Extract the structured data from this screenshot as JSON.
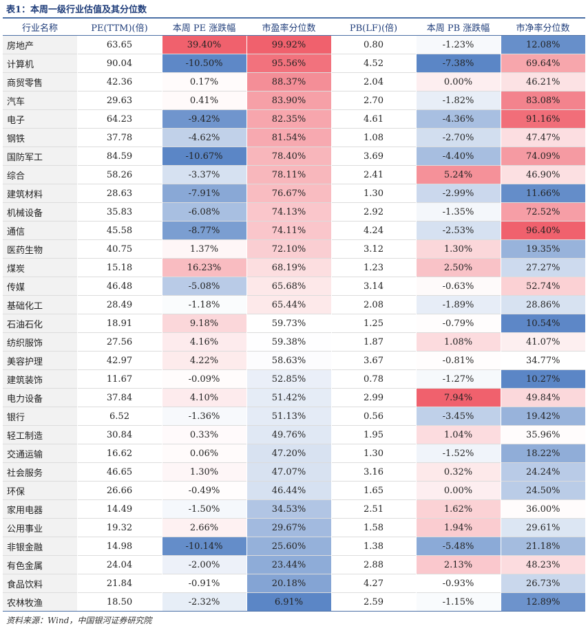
{
  "title": "表1：本周一级行业估值及其分位数",
  "headers": [
    "行业名称",
    "PE(TTM)(倍)",
    "本周 PE 涨跌幅",
    "市盈率分位数",
    "PB(LF)(倍)",
    "本周 PB 涨跌幅",
    "市净率分位数"
  ],
  "rows": [
    [
      "房地产",
      "63.65",
      "39.40%",
      "99.92%",
      "0.80",
      "-1.23%",
      "12.08%"
    ],
    [
      "计算机",
      "90.04",
      "-10.50%",
      "95.56%",
      "4.52",
      "-7.38%",
      "69.64%"
    ],
    [
      "商贸零售",
      "42.36",
      "0.17%",
      "88.37%",
      "2.04",
      "0.00%",
      "46.21%"
    ],
    [
      "汽车",
      "29.63",
      "0.41%",
      "83.90%",
      "2.70",
      "-1.82%",
      "83.08%"
    ],
    [
      "电子",
      "64.23",
      "-9.42%",
      "82.35%",
      "4.61",
      "-4.36%",
      "91.16%"
    ],
    [
      "钢铁",
      "37.78",
      "-4.62%",
      "81.54%",
      "1.08",
      "-2.70%",
      "47.47%"
    ],
    [
      "国防军工",
      "84.59",
      "-10.67%",
      "78.40%",
      "3.69",
      "-4.40%",
      "74.09%"
    ],
    [
      "综合",
      "58.26",
      "-3.37%",
      "78.11%",
      "2.41",
      "5.24%",
      "46.90%"
    ],
    [
      "建筑材料",
      "28.63",
      "-7.91%",
      "76.67%",
      "1.30",
      "-2.99%",
      "11.66%"
    ],
    [
      "机械设备",
      "35.83",
      "-6.08%",
      "74.13%",
      "2.92",
      "-1.35%",
      "72.52%"
    ],
    [
      "通信",
      "45.58",
      "-8.77%",
      "74.11%",
      "4.24",
      "-2.53%",
      "96.40%"
    ],
    [
      "医药生物",
      "40.75",
      "1.37%",
      "72.10%",
      "3.12",
      "1.30%",
      "19.35%"
    ],
    [
      "煤炭",
      "15.18",
      "16.23%",
      "68.19%",
      "1.23",
      "2.50%",
      "27.27%"
    ],
    [
      "传媒",
      "46.48",
      "-5.08%",
      "65.68%",
      "3.14",
      "-0.63%",
      "52.74%"
    ],
    [
      "基础化工",
      "28.49",
      "-1.18%",
      "65.44%",
      "2.08",
      "-1.89%",
      "28.86%"
    ],
    [
      "石油石化",
      "18.91",
      "9.18%",
      "59.73%",
      "1.25",
      "-0.79%",
      "10.54%"
    ],
    [
      "纺织服饰",
      "27.56",
      "4.16%",
      "59.38%",
      "1.87",
      "1.08%",
      "41.07%"
    ],
    [
      "美容护理",
      "42.97",
      "4.22%",
      "58.63%",
      "3.67",
      "-0.81%",
      "34.77%"
    ],
    [
      "建筑装饰",
      "11.67",
      "-0.09%",
      "52.85%",
      "0.78",
      "-1.27%",
      "10.27%"
    ],
    [
      "电力设备",
      "37.84",
      "4.10%",
      "51.42%",
      "2.99",
      "7.94%",
      "49.84%"
    ],
    [
      "银行",
      "6.52",
      "-1.36%",
      "51.13%",
      "0.56",
      "-3.45%",
      "19.42%"
    ],
    [
      "轻工制造",
      "30.84",
      "0.33%",
      "49.76%",
      "1.95",
      "1.04%",
      "35.96%"
    ],
    [
      "交通运输",
      "16.62",
      "0.06%",
      "47.20%",
      "1.30",
      "-1.52%",
      "18.22%"
    ],
    [
      "社会服务",
      "46.65",
      "1.30%",
      "47.07%",
      "3.16",
      "0.32%",
      "24.24%"
    ],
    [
      "环保",
      "26.66",
      "-0.49%",
      "46.44%",
      "1.65",
      "0.00%",
      "24.50%"
    ],
    [
      "家用电器",
      "14.49",
      "-1.50%",
      "34.53%",
      "2.51",
      "1.62%",
      "36.00%"
    ],
    [
      "公用事业",
      "19.32",
      "2.66%",
      "29.67%",
      "1.58",
      "1.94%",
      "29.61%"
    ],
    [
      "非银金融",
      "14.98",
      "-10.14%",
      "25.60%",
      "1.38",
      "-5.48%",
      "21.18%"
    ],
    [
      "有色金属",
      "24.04",
      "-2.00%",
      "23.44%",
      "2.88",
      "2.13%",
      "48.23%"
    ],
    [
      "食品饮料",
      "21.84",
      "-0.91%",
      "20.18%",
      "4.27",
      "-0.93%",
      "26.73%"
    ],
    [
      "农林牧渔",
      "18.50",
      "-2.32%",
      "6.91%",
      "2.59",
      "-1.15%",
      "12.89%"
    ]
  ],
  "heat_colors": {
    "low": "#5b86c6",
    "mid": "#ffffff",
    "high": "#f0616d"
  },
  "source": "资料来源：Wind，中国银河证券研究院"
}
